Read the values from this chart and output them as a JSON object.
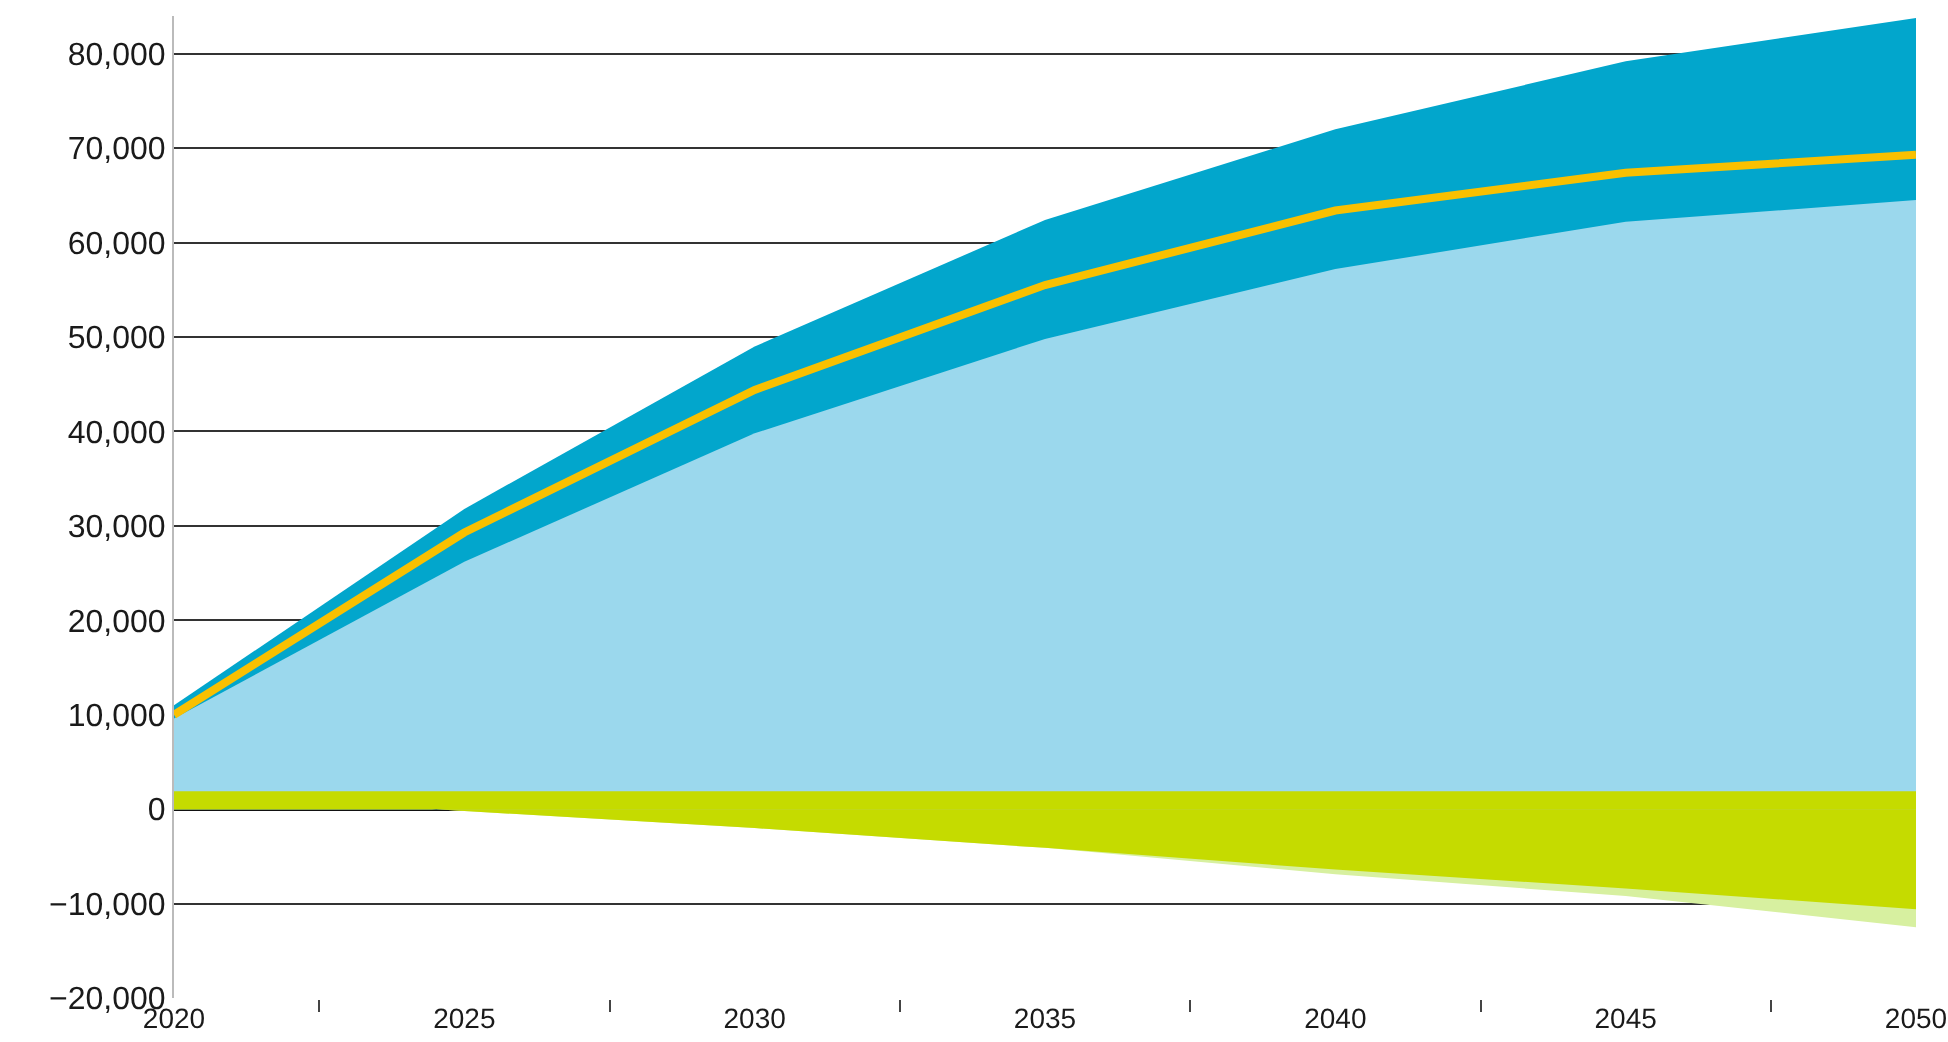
{
  "chart_data": {
    "type": "area",
    "categories": [
      "2020",
      "2025",
      "2030",
      "2035",
      "2040",
      "2045",
      "2050"
    ],
    "series": [
      {
        "color": "#02a6cc",
        "values": [
          11000,
          31800,
          49000,
          62400,
          72000,
          79200,
          83800
        ]
      },
      {
        "color": "#9bd8ed",
        "values": [
          9600,
          26200,
          39800,
          49800,
          57200,
          62200,
          64500
        ]
      },
      {
        "color": "#d7f0a0",
        "values": [
          1700,
          -200,
          -2000,
          -4100,
          -6900,
          -9200,
          -12500
        ]
      },
      {
        "color": "#c5db00",
        "values": [
          1700,
          -200,
          -2000,
          -4100,
          -6400,
          -8400,
          -10600
        ]
      },
      {
        "color": "#c5db00",
        "values": [
          1900,
          1900,
          1900,
          1900,
          1900,
          1900,
          1900
        ]
      },
      {
        "type": "line",
        "color": "#f9c000",
        "values": [
          10000,
          29300,
          44400,
          55500,
          63400,
          67400,
          69300
        ]
      }
    ],
    "ylim": [
      -20000,
      84000
    ],
    "yticks": [
      {
        "value": -20000,
        "label": "−20,000"
      },
      {
        "value": -10000,
        "label": "−10,000"
      },
      0,
      {
        "value": 10000,
        "label": "10,000"
      },
      {
        "value": 20000,
        "label": "20,000"
      },
      {
        "value": 30000,
        "label": "30,000"
      },
      {
        "value": 40000,
        "label": "40,000"
      },
      {
        "value": 50000,
        "label": "50,000"
      },
      {
        "value": 60000,
        "label": "60,000"
      },
      {
        "value": 70000,
        "label": "70,000"
      },
      {
        "value": 80000,
        "label": "80,000"
      }
    ],
    "grid": "y",
    "marker": "none",
    "line_style": "solid"
  }
}
